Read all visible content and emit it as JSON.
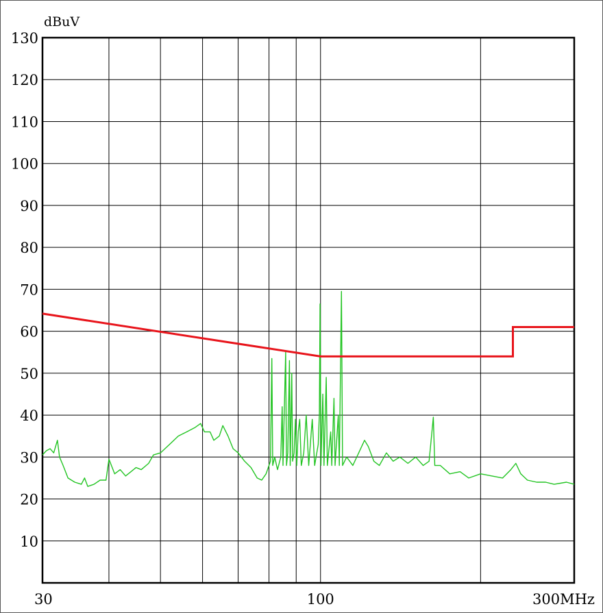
{
  "chart_data": {
    "type": "line",
    "ylabel": "dBuV",
    "x_scale": "log",
    "xlim": [
      30,
      300
    ],
    "ylim": [
      0,
      130
    ],
    "x_ticks": [
      {
        "value": 30,
        "label": "30"
      },
      {
        "value": 100,
        "label": "100"
      },
      {
        "value": 300,
        "label": "300MHz"
      }
    ],
    "x_minor_gridlines": [
      40,
      50,
      60,
      70,
      80,
      90,
      100,
      200
    ],
    "y_ticks": [
      10,
      20,
      30,
      40,
      50,
      60,
      70,
      80,
      90,
      100,
      110,
      120,
      130
    ],
    "grid": true,
    "colors": {
      "limit": "#e8141b",
      "measurement": "#22c422",
      "grid": "#000000"
    },
    "series": [
      {
        "id": "limit",
        "points": [
          [
            30,
            64.2
          ],
          [
            100,
            54.0
          ],
          [
            230,
            54.0
          ],
          [
            230,
            61.0
          ],
          [
            300,
            61.0
          ]
        ]
      },
      {
        "id": "measurement",
        "points": [
          [
            30,
            30.5
          ],
          [
            30.5,
            31.5
          ],
          [
            31,
            32
          ],
          [
            31.5,
            31
          ],
          [
            32,
            34
          ],
          [
            32.3,
            30
          ],
          [
            32.8,
            28
          ],
          [
            33.5,
            25
          ],
          [
            34.5,
            24
          ],
          [
            35.5,
            23.5
          ],
          [
            36,
            25
          ],
          [
            36.5,
            23
          ],
          [
            37.5,
            23.5
          ],
          [
            38.5,
            24.5
          ],
          [
            39.5,
            24.5
          ],
          [
            40,
            29.5
          ],
          [
            41,
            26
          ],
          [
            42,
            27
          ],
          [
            43,
            25.5
          ],
          [
            44,
            26.5
          ],
          [
            45,
            27.5
          ],
          [
            46,
            27
          ],
          [
            47.5,
            28.5
          ],
          [
            48.5,
            30.5
          ],
          [
            50,
            31
          ],
          [
            52,
            33
          ],
          [
            54,
            35
          ],
          [
            56,
            36
          ],
          [
            58,
            37
          ],
          [
            59.5,
            38
          ],
          [
            60.5,
            36
          ],
          [
            62,
            36
          ],
          [
            63,
            34
          ],
          [
            64.5,
            35
          ],
          [
            65.5,
            37.5
          ],
          [
            67,
            35
          ],
          [
            68.5,
            32
          ],
          [
            70,
            31
          ],
          [
            72,
            29
          ],
          [
            74,
            27.5
          ],
          [
            76,
            25
          ],
          [
            77.5,
            24.5
          ],
          [
            79,
            26
          ],
          [
            80.5,
            29
          ],
          [
            81,
            53.5
          ],
          [
            81.3,
            28
          ],
          [
            82,
            30
          ],
          [
            83,
            27
          ],
          [
            84.2,
            30
          ],
          [
            84.7,
            42
          ],
          [
            85,
            28
          ],
          [
            86,
            55
          ],
          [
            86.3,
            28
          ],
          [
            86.8,
            31
          ],
          [
            87.4,
            53
          ],
          [
            87.7,
            28
          ],
          [
            88.3,
            50
          ],
          [
            88.6,
            29
          ],
          [
            89.2,
            31
          ],
          [
            89.7,
            39
          ],
          [
            90.2,
            28
          ],
          [
            90.8,
            36
          ],
          [
            91.4,
            39
          ],
          [
            92,
            28
          ],
          [
            93,
            31
          ],
          [
            94,
            40
          ],
          [
            95,
            28
          ],
          [
            96.5,
            39
          ],
          [
            97.5,
            28
          ],
          [
            99,
            33
          ],
          [
            99.5,
            40.5
          ],
          [
            99.8,
            66.5
          ],
          [
            100.2,
            28
          ],
          [
            101,
            45
          ],
          [
            101.5,
            28
          ],
          [
            102.5,
            49
          ],
          [
            103,
            28
          ],
          [
            104.5,
            36
          ],
          [
            105,
            28
          ],
          [
            106,
            44
          ],
          [
            106.5,
            28
          ],
          [
            108,
            40
          ],
          [
            108.5,
            28
          ],
          [
            109.5,
            69.5
          ],
          [
            110,
            28
          ],
          [
            112,
            30
          ],
          [
            115,
            28
          ],
          [
            118,
            31
          ],
          [
            121,
            34
          ],
          [
            123,
            32.5
          ],
          [
            126,
            29
          ],
          [
            129,
            28
          ],
          [
            133,
            31
          ],
          [
            137,
            29
          ],
          [
            141,
            30
          ],
          [
            146,
            28.5
          ],
          [
            151,
            30
          ],
          [
            156,
            28
          ],
          [
            160,
            29
          ],
          [
            163,
            39.5
          ],
          [
            164,
            28
          ],
          [
            168,
            28
          ],
          [
            175,
            26
          ],
          [
            183,
            26.5
          ],
          [
            190,
            25
          ],
          [
            200,
            26
          ],
          [
            210,
            25.5
          ],
          [
            220,
            25
          ],
          [
            228,
            27
          ],
          [
            233,
            28.5
          ],
          [
            238,
            26
          ],
          [
            245,
            24.5
          ],
          [
            255,
            24
          ],
          [
            265,
            24
          ],
          [
            275,
            23.5
          ],
          [
            290,
            24
          ],
          [
            300,
            23.5
          ]
        ]
      }
    ]
  }
}
